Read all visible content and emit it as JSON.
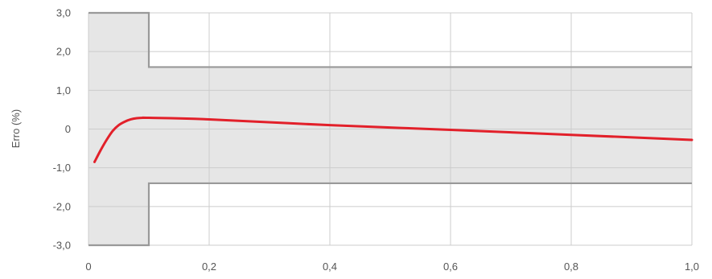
{
  "chart_data": {
    "type": "line",
    "title": "",
    "xlabel": "",
    "ylabel": "Erro (%)",
    "xlim": [
      0,
      1.0
    ],
    "ylim": [
      -3.0,
      3.0
    ],
    "x_ticks": [
      0,
      0.2,
      0.4,
      0.6,
      0.8,
      1.0
    ],
    "x_tick_labels": [
      "0",
      "0,2",
      "0,4",
      "0,6",
      "0,8",
      "1,0"
    ],
    "y_ticks": [
      3.0,
      2.0,
      1.0,
      0,
      -1.0,
      -2.0,
      -3.0
    ],
    "y_tick_labels": [
      "3,0",
      "2,0",
      "1,0",
      "0",
      "-1,0",
      "-2,0",
      "-3,0"
    ],
    "grid": true,
    "colors": {
      "series": "#e2202a",
      "limit_line": "#999999",
      "limit_fill": "#e6e6e6",
      "grid": "#cccccc"
    },
    "limits": {
      "upper": [
        {
          "x": 0,
          "y": 3.0
        },
        {
          "x": 0.1,
          "y": 3.0
        },
        {
          "x": 0.1,
          "y": 1.6
        },
        {
          "x": 1.0,
          "y": 1.6
        }
      ],
      "lower": [
        {
          "x": 0,
          "y": -3.0
        },
        {
          "x": 0.1,
          "y": -3.0
        },
        {
          "x": 0.1,
          "y": -1.4
        },
        {
          "x": 1.0,
          "y": -1.4
        }
      ]
    },
    "series": [
      {
        "x": [
          0.01,
          0.02,
          0.03,
          0.04,
          0.05,
          0.06,
          0.07,
          0.08,
          0.09,
          0.1,
          0.2,
          0.4,
          0.6,
          0.8,
          1.0
        ],
        "y": [
          -0.85,
          -0.55,
          -0.28,
          -0.05,
          0.1,
          0.19,
          0.25,
          0.28,
          0.29,
          0.29,
          0.25,
          0.1,
          -0.02,
          -0.15,
          -0.28
        ]
      }
    ]
  }
}
